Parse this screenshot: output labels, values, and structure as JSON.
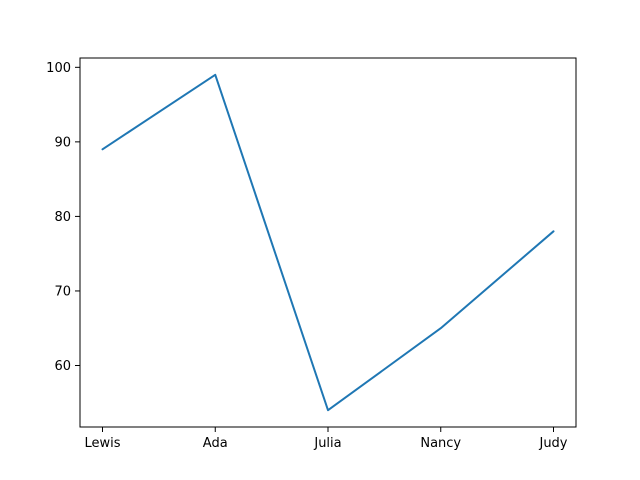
{
  "chart_data": {
    "type": "line",
    "title": "",
    "xlabel": "",
    "ylabel": "",
    "categories": [
      "Lewis",
      "Ada",
      "Julia",
      "Nancy",
      "Judy"
    ],
    "series": [
      {
        "values": [
          89,
          99,
          54,
          65,
          78
        ],
        "color": "#1f77b4"
      }
    ],
    "ylim": [
      51.75,
      101.25
    ],
    "yticks": [
      60,
      70,
      80,
      90,
      100
    ],
    "grid": false,
    "legend": "none"
  }
}
